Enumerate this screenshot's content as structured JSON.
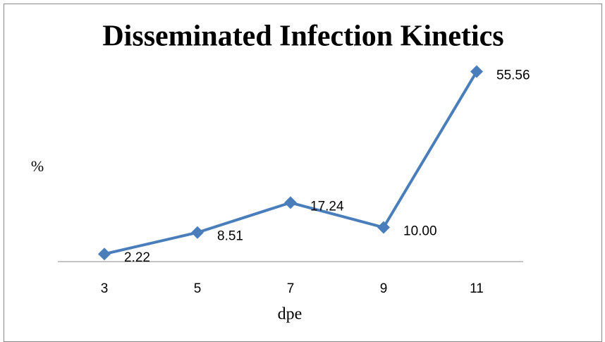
{
  "chart_data": {
    "type": "line",
    "title": "Disseminated Infection Kinetics",
    "xlabel": "dpe",
    "ylabel": "%",
    "categories": [
      "3",
      "5",
      "7",
      "9",
      "11"
    ],
    "values": [
      2.22,
      8.51,
      17.24,
      10.0,
      55.56
    ],
    "value_labels": [
      "2.22",
      "8.51",
      "17.24",
      "10.00",
      "55.56"
    ],
    "color": "#4a7ebb",
    "ylim": [
      0,
      60
    ]
  }
}
